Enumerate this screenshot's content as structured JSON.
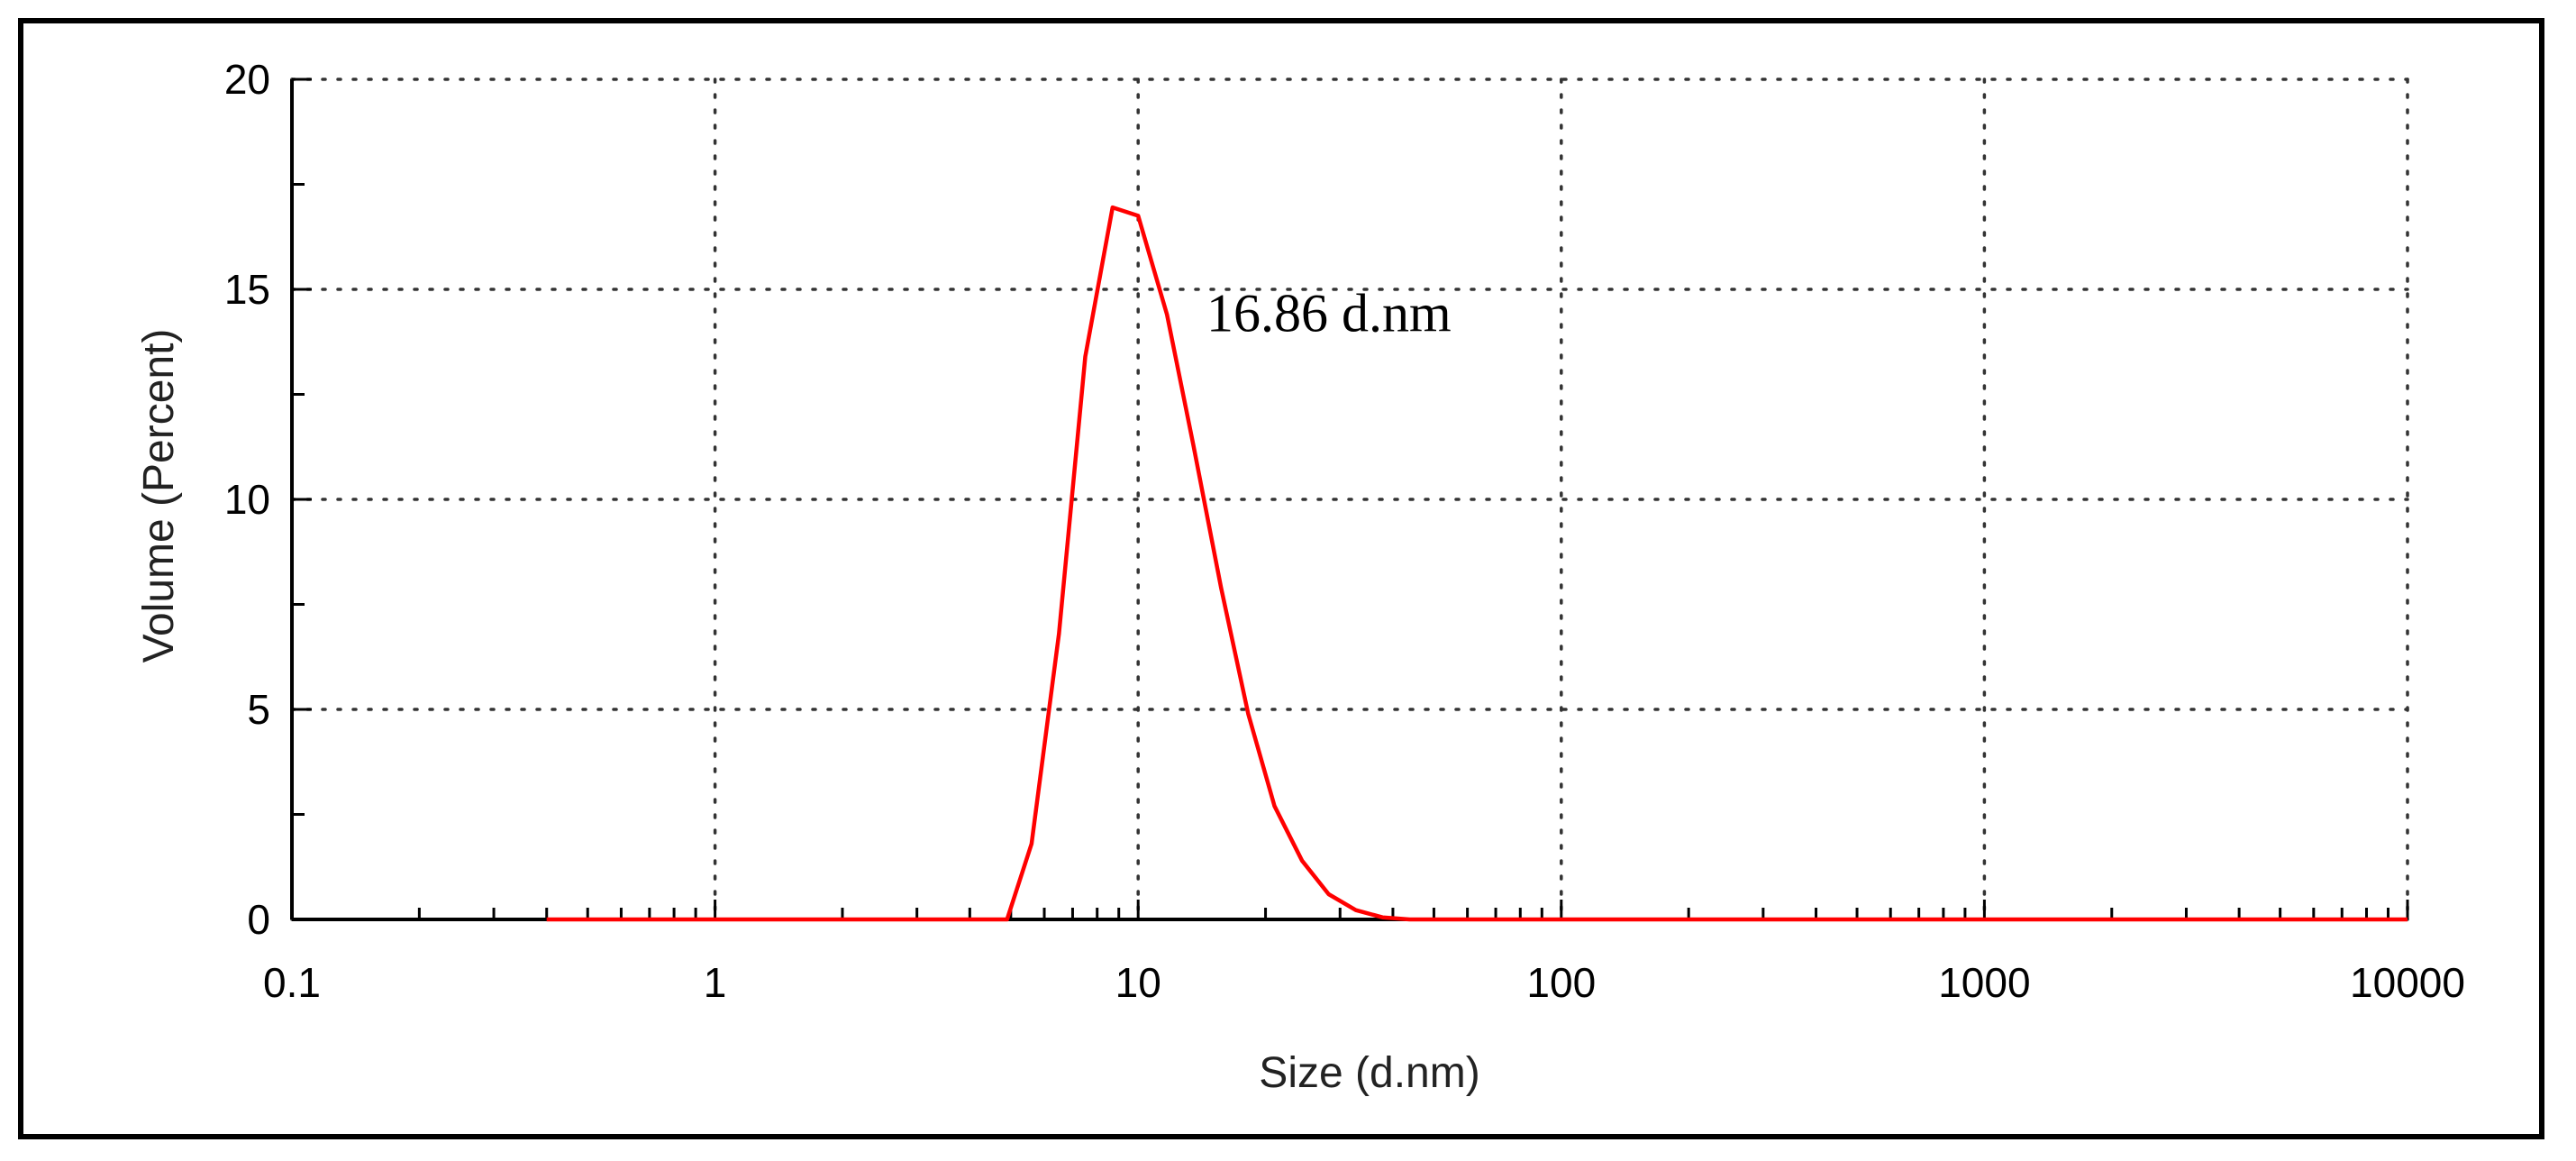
{
  "chart_data": {
    "type": "line",
    "title": "",
    "xlabel": "Size (d.nm)",
    "ylabel": "Volume (Percent)",
    "xscale": "log",
    "xlim": [
      0.1,
      10000
    ],
    "ylim": [
      0,
      20
    ],
    "x_tick_labels": [
      "0.1",
      "1",
      "10",
      "100",
      "1000",
      "10000"
    ],
    "y_tick_labels": [
      "0",
      "5",
      "10",
      "15",
      "20"
    ],
    "grid": true,
    "legend": "none",
    "line_color": "#ff0000",
    "annotations": [
      {
        "text": "16.86 d.nm",
        "x": 14.5,
        "y": 14.0
      }
    ],
    "series": [
      {
        "x": [
          0.4,
          1,
          2,
          3,
          4,
          4.9,
          5.6,
          6.5,
          7.5,
          8.7,
          10,
          11.7,
          13.5,
          15.7,
          18.2,
          21,
          24.4,
          28.2,
          32.7,
          37.8,
          43.8,
          100,
          1000,
          10000
        ],
        "y": [
          0,
          0,
          0,
          0,
          0,
          0,
          1.8,
          6.8,
          13.4,
          16.95,
          16.75,
          14.4,
          11.3,
          7.9,
          4.9,
          2.7,
          1.4,
          0.6,
          0.22,
          0.05,
          0,
          0,
          0,
          0
        ]
      }
    ]
  }
}
